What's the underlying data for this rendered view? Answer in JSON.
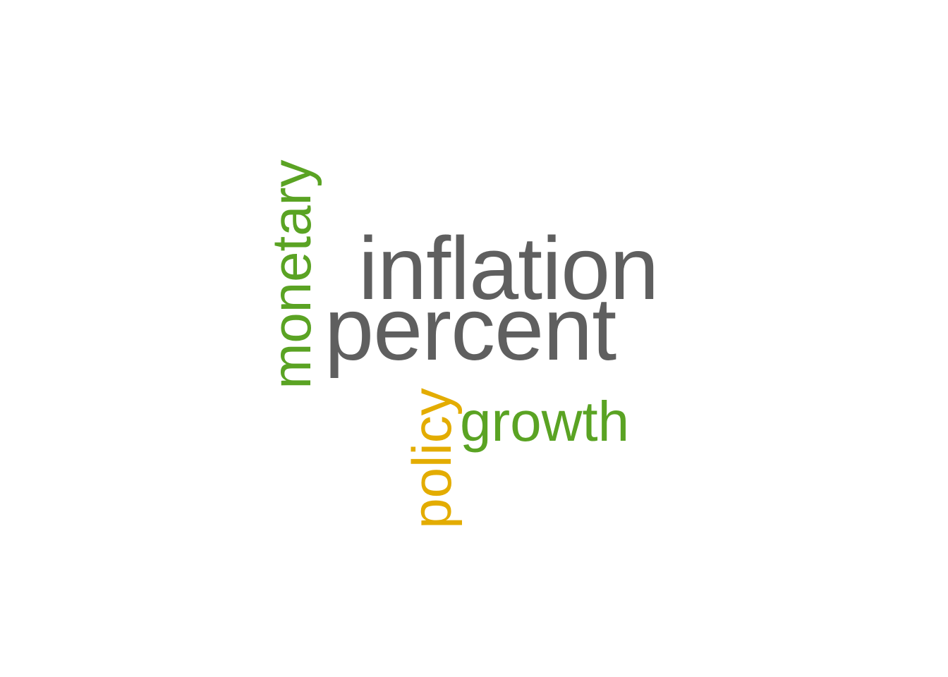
{
  "colors": {
    "gray": "#5f5f5f",
    "green": "#5aa323",
    "gold": "#e3ac00"
  },
  "words": {
    "inflation": {
      "text": "inflation",
      "color": "#5f5f5f",
      "orientation": "horizontal"
    },
    "percent": {
      "text": "percent",
      "color": "#5f5f5f",
      "orientation": "horizontal"
    },
    "monetary": {
      "text": "monetary",
      "color": "#5aa323",
      "orientation": "vertical"
    },
    "growth": {
      "text": "growth",
      "color": "#5aa323",
      "orientation": "horizontal"
    },
    "policy": {
      "text": "policy",
      "color": "#e3ac00",
      "orientation": "vertical"
    }
  }
}
